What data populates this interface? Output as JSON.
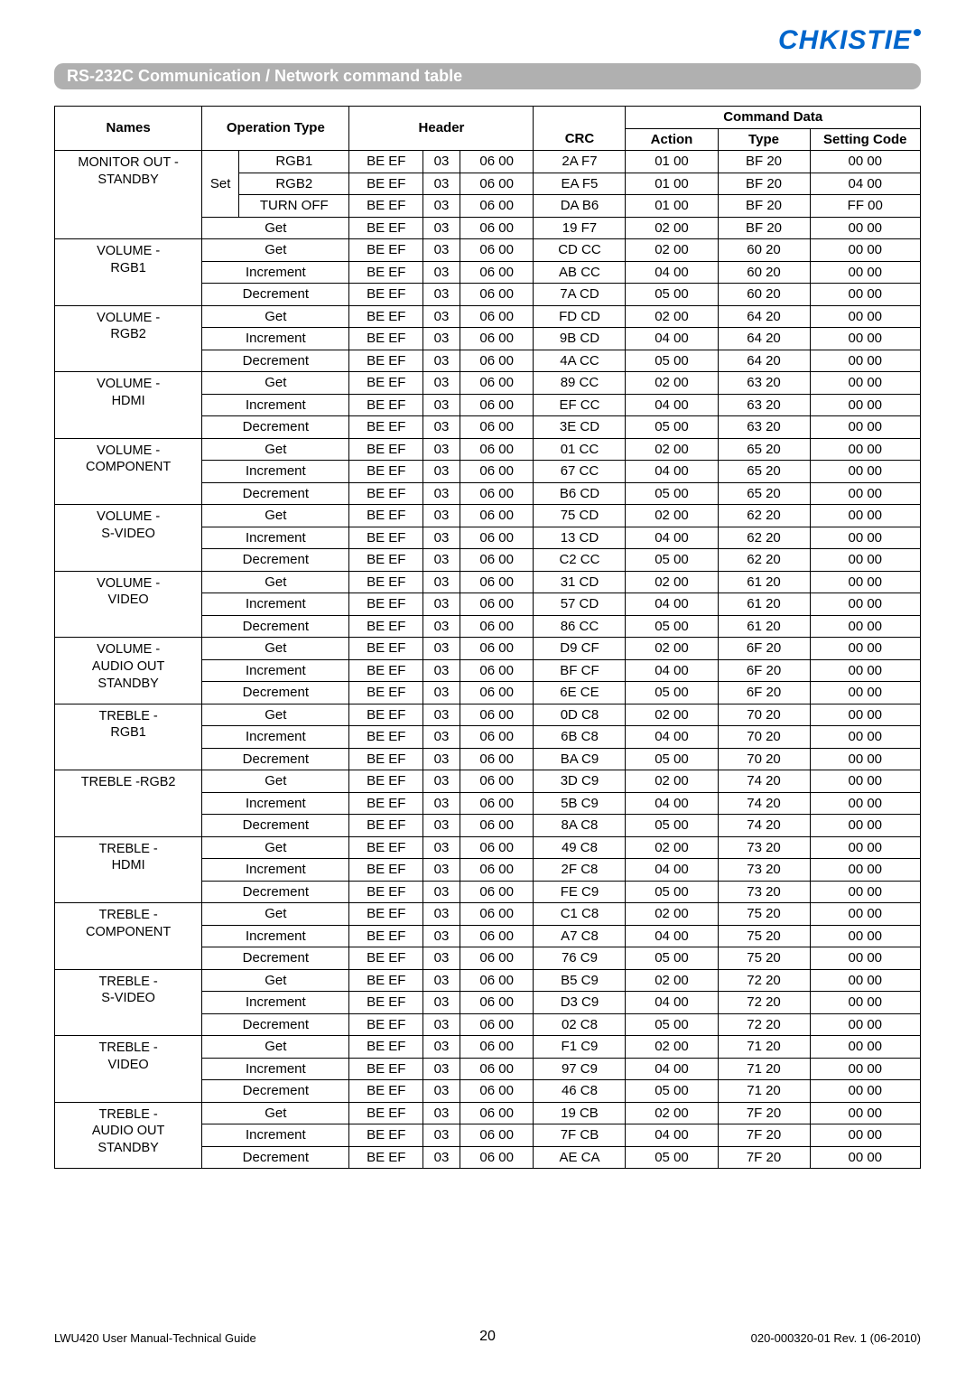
{
  "logo": "CHKISTIE",
  "title": "RS-232C Communication / Network command table",
  "headers": {
    "names": "Names",
    "operation_type": "Operation Type",
    "header": "Header",
    "crc": "CRC",
    "command_data": "Command Data",
    "action": "Action",
    "type": "Type",
    "setting_code": "Setting Code"
  },
  "groups": [
    {
      "name": "MONITOR OUT - STANDBY",
      "rows": [
        {
          "set": "Set",
          "op": "RGB1",
          "h1": "BE EF",
          "h2": "03",
          "h3": "06 00",
          "crc": "2A F7",
          "action": "01 00",
          "type": "BF 20",
          "code": "00 00"
        },
        {
          "op": "RGB2",
          "h1": "BE EF",
          "h2": "03",
          "h3": "06 00",
          "crc": "EA F5",
          "action": "01 00",
          "type": "BF 20",
          "code": "04 00"
        },
        {
          "op": "TURN OFF",
          "h1": "BE EF",
          "h2": "03",
          "h3": "06 00",
          "crc": "DA B6",
          "action": "01 00",
          "type": "BF 20",
          "code": "FF 00"
        },
        {
          "op_full": "Get",
          "h1": "BE EF",
          "h2": "03",
          "h3": "06 00",
          "crc": "19 F7",
          "action": "02 00",
          "type": "BF 20",
          "code": "00 00"
        }
      ]
    },
    {
      "name": "VOLUME - RGB1",
      "rows": [
        {
          "op_full": "Get",
          "h1": "BE EF",
          "h2": "03",
          "h3": "06 00",
          "crc": "CD CC",
          "action": "02 00",
          "type": "60 20",
          "code": "00 00"
        },
        {
          "op_full": "Increment",
          "h1": "BE EF",
          "h2": "03",
          "h3": "06 00",
          "crc": "AB CC",
          "action": "04 00",
          "type": "60 20",
          "code": "00 00"
        },
        {
          "op_full": "Decrement",
          "h1": "BE EF",
          "h2": "03",
          "h3": "06 00",
          "crc": "7A CD",
          "action": "05 00",
          "type": "60 20",
          "code": "00 00"
        }
      ]
    },
    {
      "name": "VOLUME - RGB2",
      "rows": [
        {
          "op_full": "Get",
          "h1": "BE EF",
          "h2": "03",
          "h3": "06 00",
          "crc": "FD CD",
          "action": "02 00",
          "type": "64 20",
          "code": "00 00"
        },
        {
          "op_full": "Increment",
          "h1": "BE EF",
          "h2": "03",
          "h3": "06 00",
          "crc": "9B CD",
          "action": "04 00",
          "type": "64 20",
          "code": "00 00"
        },
        {
          "op_full": "Decrement",
          "h1": "BE EF",
          "h2": "03",
          "h3": "06 00",
          "crc": "4A CC",
          "action": "05 00",
          "type": "64 20",
          "code": "00 00"
        }
      ]
    },
    {
      "name": "VOLUME - HDMI",
      "rows": [
        {
          "op_full": "Get",
          "h1": "BE EF",
          "h2": "03",
          "h3": "06 00",
          "crc": "89 CC",
          "action": "02 00",
          "type": "63 20",
          "code": "00 00"
        },
        {
          "op_full": "Increment",
          "h1": "BE EF",
          "h2": "03",
          "h3": "06 00",
          "crc": "EF CC",
          "action": "04 00",
          "type": "63 20",
          "code": "00 00"
        },
        {
          "op_full": "Decrement",
          "h1": "BE EF",
          "h2": "03",
          "h3": "06 00",
          "crc": "3E CD",
          "action": "05 00",
          "type": "63 20",
          "code": "00 00"
        }
      ]
    },
    {
      "name": "VOLUME - COMPONENT",
      "rows": [
        {
          "op_full": "Get",
          "h1": "BE EF",
          "h2": "03",
          "h3": "06 00",
          "crc": "01 CC",
          "action": "02 00",
          "type": "65 20",
          "code": "00 00"
        },
        {
          "op_full": "Increment",
          "h1": "BE EF",
          "h2": "03",
          "h3": "06 00",
          "crc": "67 CC",
          "action": "04 00",
          "type": "65 20",
          "code": "00 00"
        },
        {
          "op_full": "Decrement",
          "h1": "BE EF",
          "h2": "03",
          "h3": "06 00",
          "crc": "B6 CD",
          "action": "05 00",
          "type": "65 20",
          "code": "00 00"
        }
      ]
    },
    {
      "name": "VOLUME - S-VIDEO",
      "rows": [
        {
          "op_full": "Get",
          "h1": "BE EF",
          "h2": "03",
          "h3": "06 00",
          "crc": "75 CD",
          "action": "02 00",
          "type": "62 20",
          "code": "00 00"
        },
        {
          "op_full": "Increment",
          "h1": "BE EF",
          "h2": "03",
          "h3": "06 00",
          "crc": "13 CD",
          "action": "04 00",
          "type": "62 20",
          "code": "00 00"
        },
        {
          "op_full": "Decrement",
          "h1": "BE EF",
          "h2": "03",
          "h3": "06 00",
          "crc": "C2 CC",
          "action": "05 00",
          "type": "62 20",
          "code": "00 00"
        }
      ]
    },
    {
      "name": "VOLUME - VIDEO",
      "rows": [
        {
          "op_full": "Get",
          "h1": "BE EF",
          "h2": "03",
          "h3": "06 00",
          "crc": "31 CD",
          "action": "02 00",
          "type": "61 20",
          "code": "00 00"
        },
        {
          "op_full": "Increment",
          "h1": "BE EF",
          "h2": "03",
          "h3": "06 00",
          "crc": "57 CD",
          "action": "04 00",
          "type": "61 20",
          "code": "00 00"
        },
        {
          "op_full": "Decrement",
          "h1": "BE EF",
          "h2": "03",
          "h3": "06 00",
          "crc": "86 CC",
          "action": "05 00",
          "type": "61 20",
          "code": "00 00"
        }
      ]
    },
    {
      "name": "VOLUME - AUDIO OUT STANDBY",
      "rows": [
        {
          "op_full": "Get",
          "h1": "BE EF",
          "h2": "03",
          "h3": "06 00",
          "crc": "D9 CF",
          "action": "02 00",
          "type": "6F 20",
          "code": "00 00"
        },
        {
          "op_full": "Increment",
          "h1": "BE EF",
          "h2": "03",
          "h3": "06 00",
          "crc": "BF CF",
          "action": "04 00",
          "type": "6F 20",
          "code": "00 00"
        },
        {
          "op_full": "Decrement",
          "h1": "BE EF",
          "h2": "03",
          "h3": "06 00",
          "crc": "6E CE",
          "action": "05 00",
          "type": "6F 20",
          "code": "00 00"
        }
      ]
    },
    {
      "name": "TREBLE - RGB1",
      "rows": [
        {
          "op_full": "Get",
          "h1": "BE EF",
          "h2": "03",
          "h3": "06 00",
          "crc": "0D C8",
          "action": "02 00",
          "type": "70 20",
          "code": "00 00"
        },
        {
          "op_full": "Increment",
          "h1": "BE EF",
          "h2": "03",
          "h3": "06 00",
          "crc": "6B C8",
          "action": "04 00",
          "type": "70 20",
          "code": "00 00"
        },
        {
          "op_full": "Decrement",
          "h1": "BE EF",
          "h2": "03",
          "h3": "06 00",
          "crc": "BA C9",
          "action": "05 00",
          "type": "70 20",
          "code": "00 00"
        }
      ]
    },
    {
      "name": "TREBLE -RGB2",
      "rows": [
        {
          "op_full": "Get",
          "h1": "BE EF",
          "h2": "03",
          "h3": "06 00",
          "crc": "3D C9",
          "action": "02 00",
          "type": "74 20",
          "code": "00 00"
        },
        {
          "op_full": "Increment",
          "h1": "BE EF",
          "h2": "03",
          "h3": "06 00",
          "crc": "5B C9",
          "action": "04 00",
          "type": "74 20",
          "code": "00 00"
        },
        {
          "op_full": "Decrement",
          "h1": "BE EF",
          "h2": "03",
          "h3": "06 00",
          "crc": "8A C8",
          "action": "05 00",
          "type": "74 20",
          "code": "00 00"
        }
      ]
    },
    {
      "name": "TREBLE - HDMI",
      "rows": [
        {
          "op_full": "Get",
          "h1": "BE EF",
          "h2": "03",
          "h3": "06 00",
          "crc": "49 C8",
          "action": "02 00",
          "type": "73 20",
          "code": "00 00"
        },
        {
          "op_full": "Increment",
          "h1": "BE EF",
          "h2": "03",
          "h3": "06 00",
          "crc": "2F C8",
          "action": "04 00",
          "type": "73 20",
          "code": "00 00"
        },
        {
          "op_full": "Decrement",
          "h1": "BE EF",
          "h2": "03",
          "h3": "06 00",
          "crc": "FE C9",
          "action": "05 00",
          "type": "73 20",
          "code": "00 00"
        }
      ]
    },
    {
      "name": "TREBLE - COMPONENT",
      "rows": [
        {
          "op_full": "Get",
          "h1": "BE EF",
          "h2": "03",
          "h3": "06 00",
          "crc": "C1 C8",
          "action": "02 00",
          "type": "75 20",
          "code": "00 00"
        },
        {
          "op_full": "Increment",
          "h1": "BE EF",
          "h2": "03",
          "h3": "06 00",
          "crc": "A7 C8",
          "action": "04 00",
          "type": "75 20",
          "code": "00 00"
        },
        {
          "op_full": "Decrement",
          "h1": "BE EF",
          "h2": "03",
          "h3": "06 00",
          "crc": "76 C9",
          "action": "05 00",
          "type": "75 20",
          "code": "00 00"
        }
      ]
    },
    {
      "name": "TREBLE - S-VIDEO",
      "rows": [
        {
          "op_full": "Get",
          "h1": "BE EF",
          "h2": "03",
          "h3": "06 00",
          "crc": "B5 C9",
          "action": "02 00",
          "type": "72 20",
          "code": "00 00"
        },
        {
          "op_full": "Increment",
          "h1": "BE EF",
          "h2": "03",
          "h3": "06 00",
          "crc": "D3 C9",
          "action": "04 00",
          "type": "72 20",
          "code": "00 00"
        },
        {
          "op_full": "Decrement",
          "h1": "BE EF",
          "h2": "03",
          "h3": "06 00",
          "crc": "02 C8",
          "action": "05 00",
          "type": "72 20",
          "code": "00 00"
        }
      ]
    },
    {
      "name": "TREBLE - VIDEO",
      "rows": [
        {
          "op_full": "Get",
          "h1": "BE EF",
          "h2": "03",
          "h3": "06 00",
          "crc": "F1 C9",
          "action": "02 00",
          "type": "71 20",
          "code": "00 00"
        },
        {
          "op_full": "Increment",
          "h1": "BE EF",
          "h2": "03",
          "h3": "06 00",
          "crc": "97 C9",
          "action": "04 00",
          "type": "71 20",
          "code": "00 00"
        },
        {
          "op_full": "Decrement",
          "h1": "BE EF",
          "h2": "03",
          "h3": "06 00",
          "crc": "46 C8",
          "action": "05 00",
          "type": "71 20",
          "code": "00 00"
        }
      ]
    },
    {
      "name": "TREBLE - AUDIO OUT STANDBY",
      "rows": [
        {
          "op_full": "Get",
          "h1": "BE EF",
          "h2": "03",
          "h3": "06 00",
          "crc": "19 CB",
          "action": "02 00",
          "type": "7F 20",
          "code": "00 00"
        },
        {
          "op_full": "Increment",
          "h1": "BE EF",
          "h2": "03",
          "h3": "06 00",
          "crc": "7F CB",
          "action": "04 00",
          "type": "7F 20",
          "code": "00 00"
        },
        {
          "op_full": "Decrement",
          "h1": "BE EF",
          "h2": "03",
          "h3": "06 00",
          "crc": "AE CA",
          "action": "05 00",
          "type": "7F 20",
          "code": "00 00"
        }
      ]
    }
  ],
  "footer": {
    "left": "LWU420 User Manual-Technical Guide",
    "page": "20",
    "right": "020-000320-01 Rev. 1 (06-2010)"
  }
}
